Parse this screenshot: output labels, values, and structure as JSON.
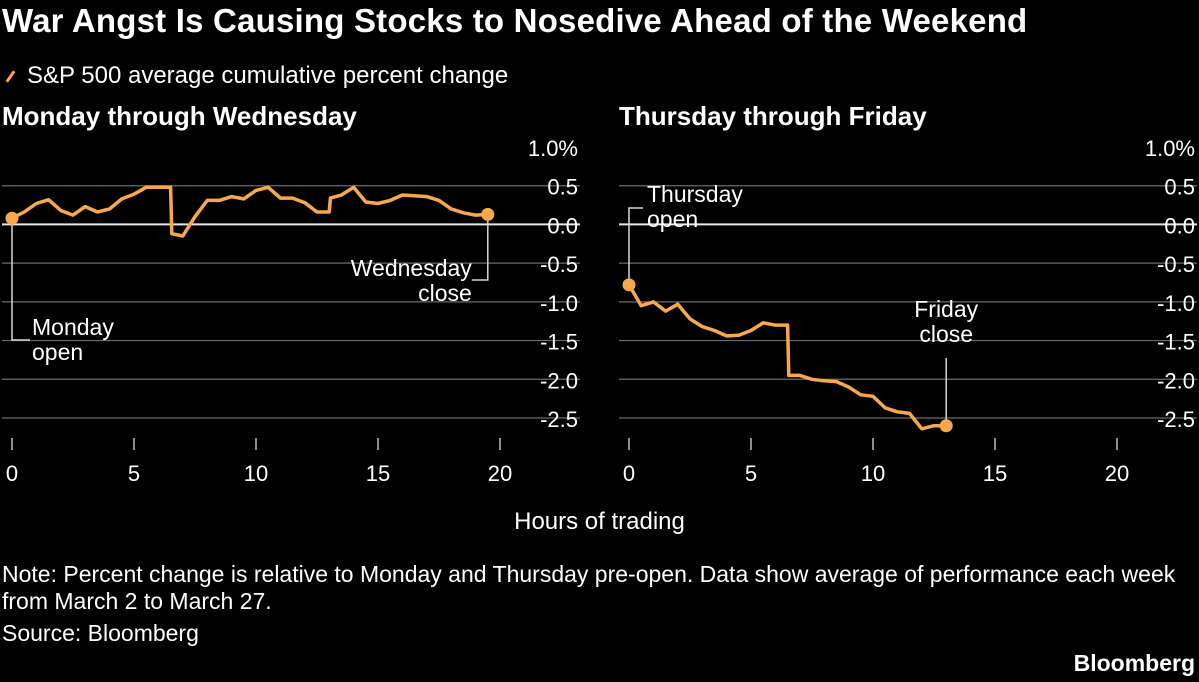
{
  "title": "War Angst Is Causing Stocks to Nosedive Ahead of the Weekend",
  "legend": {
    "label": "S&P 500 average cumulative percent change",
    "color": "#f7a84a"
  },
  "xlabel": "Hours of trading",
  "note": "Note: Percent change is relative to Monday and Thursday pre-open. Data show average of performance each week from March 2 to March 27.",
  "source": "Source: Bloomberg",
  "brand": "Bloomberg",
  "chart_data": [
    {
      "type": "line",
      "title": "Monday through Wednesday",
      "xlim": [
        0,
        20
      ],
      "ylim": [
        -2.5,
        1.0
      ],
      "x_ticks": [
        "0",
        "5",
        "10",
        "15",
        "20"
      ],
      "y_ticks": [
        "1.0%",
        "0.5",
        "0.0",
        "-0.5",
        "-1.0",
        "-1.5",
        "-2.0",
        "-2.5"
      ],
      "zero_line": true,
      "series": [
        {
          "color": "#f7a84a",
          "x": [
            0,
            0.5,
            1,
            1.5,
            2,
            2.5,
            3,
            3.5,
            4,
            4.5,
            5,
            5.5,
            6,
            6.5,
            6.55,
            7,
            7.5,
            8,
            8.5,
            9,
            9.5,
            10,
            10.5,
            11,
            11.5,
            12,
            12.5,
            13,
            13.05,
            13.5,
            14,
            14.5,
            15,
            15.5,
            16,
            16.5,
            17,
            17.5,
            18,
            18.5,
            19,
            19.5
          ],
          "y": [
            0.08,
            0.16,
            0.27,
            0.32,
            0.18,
            0.12,
            0.23,
            0.16,
            0.2,
            0.33,
            0.39,
            0.48,
            0.48,
            0.48,
            -0.12,
            -0.15,
            0.1,
            0.31,
            0.31,
            0.36,
            0.33,
            0.44,
            0.48,
            0.34,
            0.34,
            0.28,
            0.16,
            0.16,
            0.34,
            0.38,
            0.48,
            0.29,
            0.27,
            0.31,
            0.38,
            0.37,
            0.36,
            0.31,
            0.2,
            0.15,
            0.12,
            0.13
          ]
        }
      ],
      "annotations": [
        {
          "text": [
            "Monday",
            "open"
          ],
          "x": 0,
          "y": 0.08
        },
        {
          "text": [
            "Wednesday",
            "close"
          ],
          "x": 19.5,
          "y": 0.13
        }
      ]
    },
    {
      "type": "line",
      "title": "Thursday through Friday",
      "xlim": [
        0,
        20
      ],
      "ylim": [
        -2.5,
        1.0
      ],
      "x_ticks": [
        "0",
        "5",
        "10",
        "15",
        "20"
      ],
      "y_ticks": [
        "1.0%",
        "0.5",
        "0.0",
        "-0.5",
        "-1.0",
        "-1.5",
        "-2.0",
        "-2.5"
      ],
      "zero_line": true,
      "series": [
        {
          "color": "#f7a84a",
          "x": [
            0,
            0.5,
            1,
            1.5,
            2,
            2.5,
            3,
            3.5,
            4,
            4.5,
            5,
            5.5,
            6,
            6.5,
            6.55,
            7,
            7.5,
            8,
            8.5,
            9,
            9.5,
            10,
            10.5,
            11,
            11.5,
            12,
            12.5,
            13
          ],
          "y": [
            -0.78,
            -1.05,
            -1.0,
            -1.12,
            -1.03,
            -1.22,
            -1.32,
            -1.37,
            -1.44,
            -1.43,
            -1.37,
            -1.27,
            -1.3,
            -1.3,
            -1.95,
            -1.95,
            -2.0,
            -2.02,
            -2.03,
            -2.1,
            -2.2,
            -2.22,
            -2.37,
            -2.42,
            -2.44,
            -2.64,
            -2.6,
            -2.6
          ]
        }
      ],
      "annotations": [
        {
          "text": [
            "Thursday",
            "open"
          ],
          "x": 0,
          "y": -0.78
        },
        {
          "text": [
            "Friday",
            "close"
          ],
          "x": 13,
          "y": -2.6
        }
      ]
    }
  ]
}
